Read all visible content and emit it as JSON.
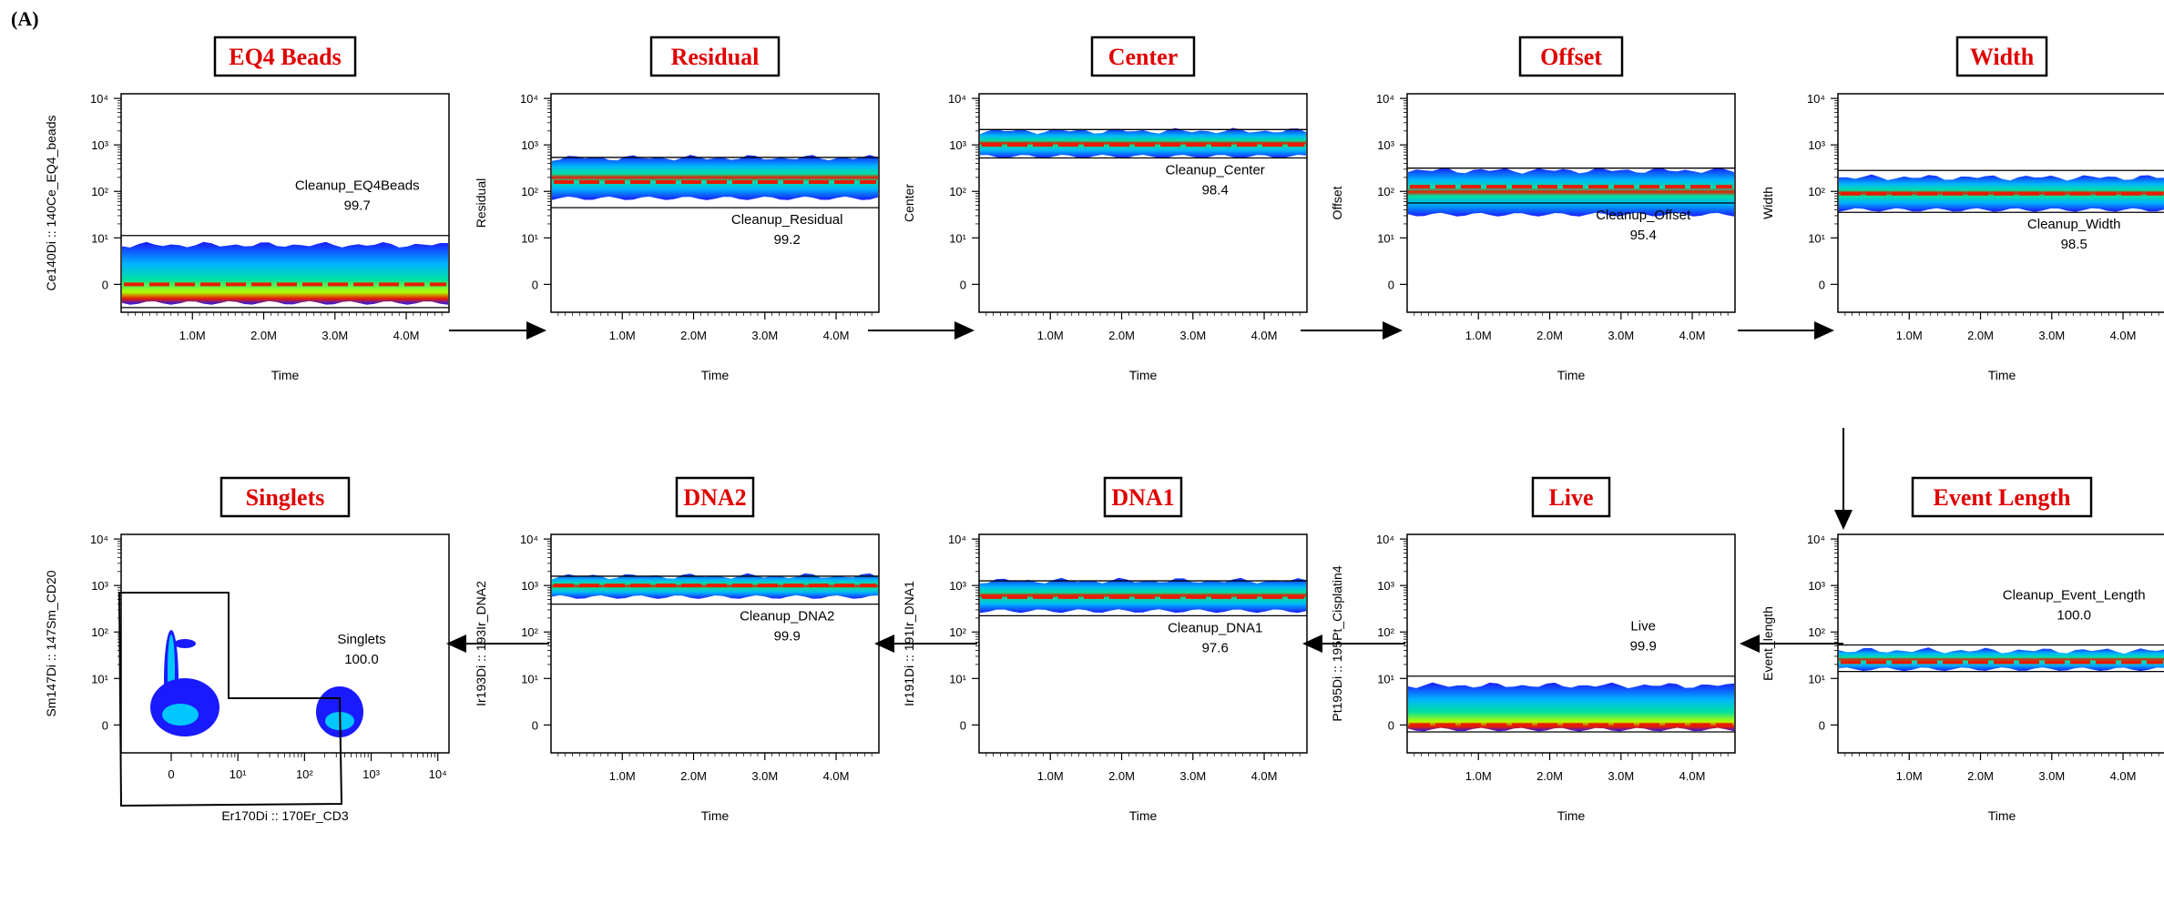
{
  "panel_label": "(A)",
  "chart_data": [
    {
      "type": "heatmap",
      "title": "EQ4 Beads",
      "xlabel": "Time",
      "ylabel": "Ce140Di :: 140Ce_EQ4_beads",
      "xticks": [
        "1.0M",
        "2.0M",
        "3.0M",
        "4.0M"
      ],
      "gate": {
        "name": "Cleanup_EQ4Beads",
        "value": "99.7"
      },
      "density_band": [
        -0.4,
        0.85
      ],
      "gate_range": [
        -0.5,
        1.05
      ],
      "hotline": 0
    },
    {
      "type": "heatmap",
      "title": "Residual",
      "xlabel": "Time",
      "ylabel": "Residual",
      "xticks": [
        "1.0M",
        "2.0M",
        "3.0M",
        "4.0M"
      ],
      "gate": {
        "name": "Cleanup_Residual",
        "value": "99.2"
      },
      "density_band": [
        1.85,
        2.72
      ],
      "gate_range": [
        1.65,
        2.73
      ],
      "hotline": 2.2
    },
    {
      "type": "heatmap",
      "title": "Center",
      "xlabel": "Time",
      "ylabel": "Center",
      "xticks": [
        "1.0M",
        "2.0M",
        "3.0M",
        "4.0M"
      ],
      "gate": {
        "name": "Cleanup_Center",
        "value": "98.4"
      },
      "density_band": [
        2.75,
        3.3
      ],
      "gate_range": [
        2.72,
        3.33
      ],
      "hotline": 3.0
    },
    {
      "type": "heatmap",
      "title": "Offset",
      "xlabel": "Time",
      "ylabel": "Offset",
      "xticks": [
        "1.0M",
        "2.0M",
        "3.0M",
        "4.0M"
      ],
      "gate": {
        "name": "Cleanup_Offset",
        "value": "95.4"
      },
      "density_band": [
        1.5,
        2.45
      ],
      "gate_range": [
        1.75,
        2.5
      ],
      "hotline": 2.1
    },
    {
      "type": "heatmap",
      "title": "Width",
      "xlabel": "Time",
      "ylabel": "Width",
      "xticks": [
        "1.0M",
        "2.0M",
        "3.0M",
        "4.0M"
      ],
      "gate": {
        "name": "Cleanup_Width",
        "value": "98.5"
      },
      "density_band": [
        1.6,
        2.3
      ],
      "gate_range": [
        1.55,
        2.45
      ],
      "hotline": 1.95
    },
    {
      "type": "heatmap",
      "title": "Event Length",
      "xlabel": "Time",
      "ylabel": "Event_length",
      "xticks": [
        "1.0M",
        "2.0M",
        "3.0M",
        "4.0M"
      ],
      "gate": {
        "name": "Cleanup_Event_Length",
        "value": "100.0"
      },
      "density_band": [
        1.2,
        1.6
      ],
      "gate_range": [
        1.15,
        1.72
      ],
      "hotline": 1.35
    },
    {
      "type": "heatmap",
      "title": "Live",
      "xlabel": "Time",
      "ylabel": "Pt195Di :: 195Pt_Cisplatin4",
      "xticks": [
        "1.0M",
        "2.0M",
        "3.0M",
        "4.0M"
      ],
      "gate": {
        "name": "Live",
        "value": "99.9"
      },
      "density_band": [
        -0.1,
        0.85
      ],
      "gate_range": [
        -0.15,
        1.05
      ],
      "hotline": 0
    },
    {
      "type": "heatmap",
      "title": "DNA1",
      "xlabel": "Time",
      "ylabel": "Ir191Di :: 191Ir_DNA1",
      "xticks": [
        "1.0M",
        "2.0M",
        "3.0M",
        "4.0M"
      ],
      "gate": {
        "name": "Cleanup_DNA1",
        "value": "97.6"
      },
      "density_band": [
        2.45,
        3.1
      ],
      "gate_range": [
        2.35,
        3.1
      ],
      "hotline": 2.75
    },
    {
      "type": "heatmap",
      "title": "DNA2",
      "xlabel": "Time",
      "ylabel": "Ir193Di :: 193Ir_DNA2",
      "xticks": [
        "1.0M",
        "2.0M",
        "3.0M",
        "4.0M"
      ],
      "gate": {
        "name": "Cleanup_DNA2",
        "value": "99.9"
      },
      "density_band": [
        2.75,
        3.2
      ],
      "gate_range": [
        2.6,
        3.2
      ],
      "hotline": 3.0
    },
    {
      "type": "scatter",
      "title": "Singlets",
      "xlabel": "Er170Di :: 170Er_CD3",
      "ylabel": "Sm147Di :: 147Sm_CD20",
      "xticks": [
        "0",
        "10¹",
        "10²",
        "10³",
        "10⁴"
      ],
      "gate": {
        "name": "Singlets",
        "value": "100.0"
      }
    }
  ],
  "yticks": [
    "0",
    "10¹",
    "10²",
    "10³",
    "10⁴"
  ],
  "colors": {
    "title": "#e00000",
    "heat_low": "#1a1aff",
    "heat_mid": "#00c8ff",
    "heat_high": "#e81c00"
  }
}
